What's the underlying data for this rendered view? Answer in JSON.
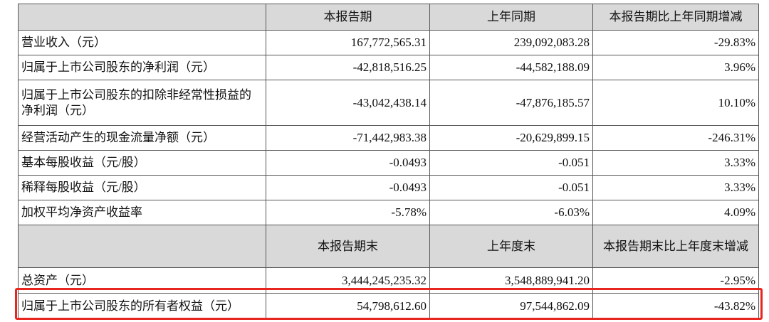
{
  "table": {
    "header": [
      "本报告期",
      "上年同期",
      "本报告期比上年同期增减"
    ],
    "rows": [
      [
        "营业收入（元）",
        "167,772,565.31",
        "239,092,083.28",
        "-29.83%"
      ],
      [
        "归属于上市公司股东的净利润（元）",
        "-42,818,516.25",
        "-44,582,188.09",
        "3.96%"
      ],
      [
        "归属于上市公司股东的扣除非经常性损益的净利润（元）",
        "-43,042,438.14",
        "-47,876,185.57",
        "10.10%"
      ],
      [
        "经营活动产生的现金流量净额（元）",
        "-71,442,983.38",
        "-20,629,899.15",
        "-246.31%"
      ],
      [
        "基本每股收益（元/股）",
        "-0.0493",
        "-0.051",
        "3.33%"
      ],
      [
        "稀释每股收益（元/股）",
        "-0.0493",
        "-0.051",
        "3.33%"
      ],
      [
        "加权平均净资产收益率",
        "-5.78%",
        "-6.03%",
        "4.09%"
      ]
    ],
    "header2": [
      "本报告期末",
      "上年度末",
      "本报告期末比上年度末增减"
    ],
    "rows2": [
      [
        "总资产（元）",
        "3,444,245,235.32",
        "3,548,889,941.20",
        "-2.95%"
      ],
      [
        "归属于上市公司股东的所有者权益（元）",
        "54,798,612.60",
        "97,544,862.09",
        "-43.82%"
      ]
    ]
  }
}
